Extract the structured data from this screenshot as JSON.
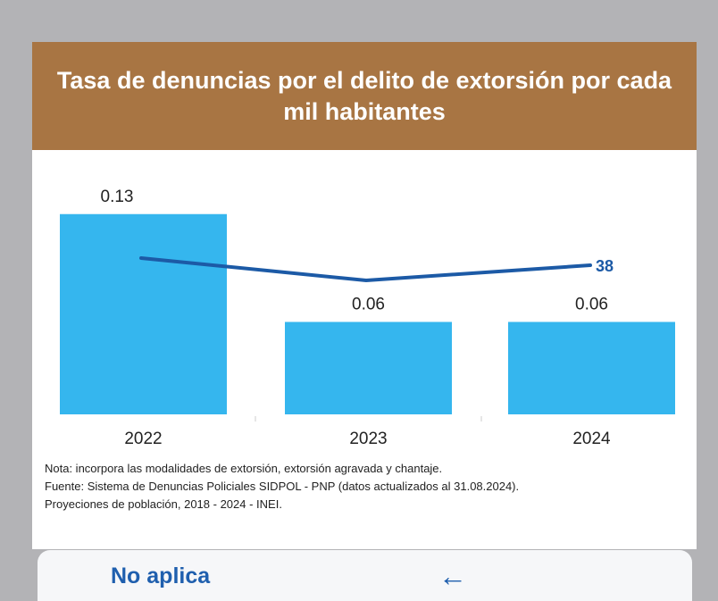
{
  "chart_data": {
    "type": "bar",
    "title": "Tasa de denuncias por el delito de extorsión por cada mil habitantes",
    "categories": [
      "2022",
      "2023",
      "2024"
    ],
    "series": [
      {
        "values": [
          0.13,
          0.06,
          0.06
        ],
        "labels": [
          "0.13",
          "0.06",
          "0.06"
        ]
      }
    ],
    "line_series": {
      "values": [
        null,
        null,
        38
      ],
      "labels": [
        "",
        "",
        "38"
      ]
    },
    "ylim": [
      0,
      0.16
    ],
    "grid": false,
    "colors": {
      "bar": "#35b6ee",
      "line": "#1c5aa6",
      "header": "#a87543"
    }
  },
  "notes": [
    "Nota: incorpora las modalidades de extorsión, extorsión agravada y chantaje.",
    "Fuente: Sistema de Denuncias Policiales SIDPOL - PNP (datos actualizados al 31.08.2024).",
    "Proyeciones de población, 2018 - 2024 - INEI."
  ],
  "footer": {
    "label": "No aplica",
    "back_icon": "arrow-left-icon"
  }
}
